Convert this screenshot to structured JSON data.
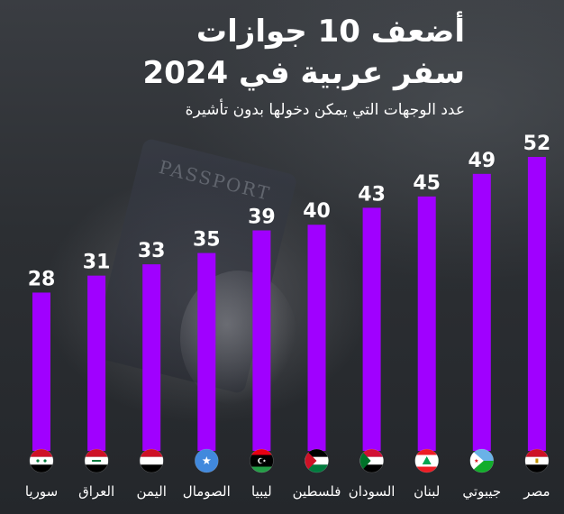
{
  "title_line1": "أضعف 10 جوازات",
  "title_line2": "سفر عربية في 2024",
  "subtitle": "عدد الوجهات التي يمكن دخولها بدون تأشيرة",
  "background_text": "PASSPORT",
  "colors": {
    "bar": "#a000ff",
    "text": "#ffffff"
  },
  "chart_data": {
    "type": "bar",
    "title": "أضعف 10 جوازات سفر عربية في 2024",
    "ylabel": "عدد الوجهات التي يمكن دخولها بدون تأشيرة",
    "xlabel": "",
    "categories": [
      "سوريا",
      "العراق",
      "اليمن",
      "الصومال",
      "ليبيا",
      "فلسطين",
      "السودان",
      "لبنان",
      "جيبوتي",
      "مصر"
    ],
    "flags": [
      "syria-flag-icon",
      "iraq-flag-icon",
      "yemen-flag-icon",
      "somalia-flag-icon",
      "libya-flag-icon",
      "palestine-flag-icon",
      "sudan-flag-icon",
      "lebanon-flag-icon",
      "djibouti-flag-icon",
      "egypt-flag-icon"
    ],
    "values": [
      28,
      31,
      33,
      35,
      39,
      40,
      43,
      45,
      49,
      52
    ],
    "ylim": [
      0,
      52
    ],
    "grid": false,
    "legend": "none"
  }
}
